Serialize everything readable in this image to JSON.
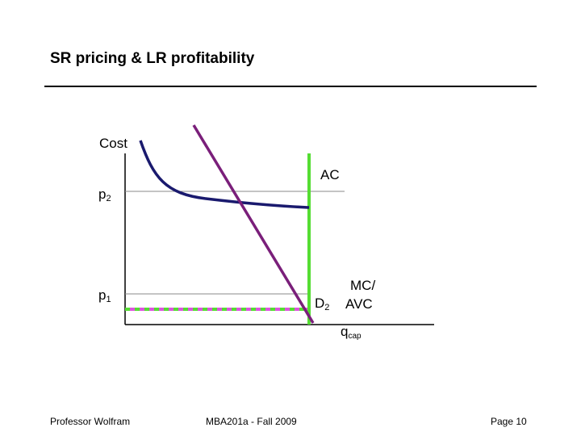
{
  "slide": {
    "title": "SR pricing & LR profitability",
    "footer_left": "Professor Wolfram",
    "footer_center": "MBA201a - Fall 2009",
    "footer_right": "Page 10"
  },
  "diagram": {
    "y_axis_label": "Cost",
    "price_labels": {
      "p2": {
        "base": "p",
        "sub": "2"
      },
      "p1": {
        "base": "p",
        "sub": "1"
      }
    },
    "curve_labels": {
      "ac": "AC",
      "demand": {
        "base": "D",
        "sub": "2"
      },
      "mc_line1": "MC/",
      "mc_line2": "AVC",
      "capacity": {
        "base": "q",
        "sub": "cap"
      }
    },
    "colors": {
      "ac_curve": "#1a1a6e",
      "demand": "#7a1f7a",
      "capacity": "#55dd33",
      "mc_dashed_green": "#55dd33",
      "mc_dashed_pink": "#dd55dd",
      "guide_lines": "#888888",
      "axes": "#000000"
    }
  }
}
